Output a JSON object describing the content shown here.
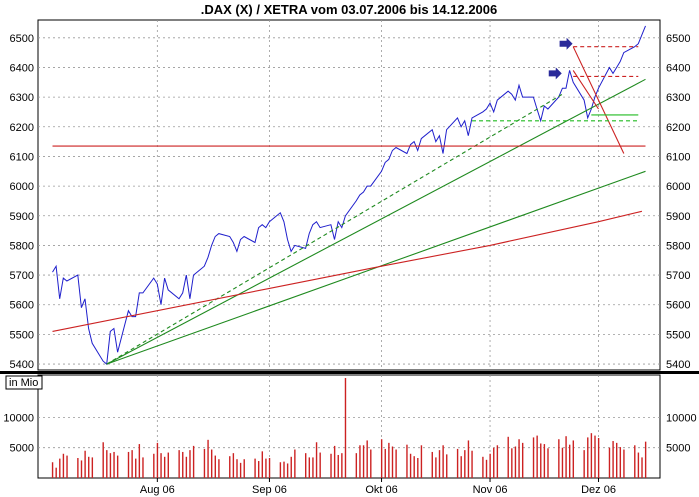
{
  "chart_data": [
    {
      "type": "line",
      "title": ".DAX (X) / XETRA vom 03.07.2006 bis 14.12.2006",
      "xlabel": "",
      "ylabel": "",
      "x_tick_labels": [
        "Aug 06",
        "Sep 06",
        "Okt 06",
        "Nov 06",
        "Dez 06"
      ],
      "x_tick_dates": [
        "2006-08-01",
        "2006-09-01",
        "2006-10-02",
        "2006-11-01",
        "2006-12-01"
      ],
      "xlim": [
        "2006-07-03",
        "2006-12-14"
      ],
      "ylim": [
        5380,
        6560
      ],
      "y_ticks": [
        5400,
        5500,
        5600,
        5700,
        5800,
        5900,
        6000,
        6100,
        6200,
        6300,
        6400,
        6500
      ],
      "y_tick_labels": [
        "5400",
        "5500",
        "5600",
        "5700",
        "5800",
        "5900",
        "6000",
        "6100",
        "6200",
        "6300",
        "6400",
        "6500"
      ],
      "grid": true,
      "colors": {
        "price": "#1f1fcc",
        "trend": "#1f8a1f",
        "average": "#cc2222",
        "level": "#cc2222",
        "support": "#22bb22",
        "marker": "#2a2a9a"
      },
      "series": [
        {
          "role": "price",
          "x": [
            "2006-07-03",
            "2006-07-04",
            "2006-07-05",
            "2006-07-06",
            "2006-07-07",
            "2006-07-10",
            "2006-07-11",
            "2006-07-12",
            "2006-07-13",
            "2006-07-14",
            "2006-07-17",
            "2006-07-18",
            "2006-07-19",
            "2006-07-20",
            "2006-07-21",
            "2006-07-24",
            "2006-07-25",
            "2006-07-26",
            "2006-07-27",
            "2006-07-28",
            "2006-07-31",
            "2006-08-01",
            "2006-08-02",
            "2006-08-03",
            "2006-08-04",
            "2006-08-07",
            "2006-08-08",
            "2006-08-09",
            "2006-08-10",
            "2006-08-11",
            "2006-08-14",
            "2006-08-15",
            "2006-08-16",
            "2006-08-17",
            "2006-08-18",
            "2006-08-21",
            "2006-08-22",
            "2006-08-23",
            "2006-08-24",
            "2006-08-25",
            "2006-08-28",
            "2006-08-29",
            "2006-08-30",
            "2006-08-31",
            "2006-09-01",
            "2006-09-04",
            "2006-09-05",
            "2006-09-06",
            "2006-09-07",
            "2006-09-08",
            "2006-09-11",
            "2006-09-12",
            "2006-09-13",
            "2006-09-14",
            "2006-09-15",
            "2006-09-18",
            "2006-09-19",
            "2006-09-20",
            "2006-09-21",
            "2006-09-22",
            "2006-09-25",
            "2006-09-26",
            "2006-09-27",
            "2006-09-28",
            "2006-09-29",
            "2006-10-02",
            "2006-10-03",
            "2006-10-04",
            "2006-10-05",
            "2006-10-06",
            "2006-10-09",
            "2006-10-10",
            "2006-10-11",
            "2006-10-12",
            "2006-10-13",
            "2006-10-16",
            "2006-10-17",
            "2006-10-18",
            "2006-10-19",
            "2006-10-20",
            "2006-10-23",
            "2006-10-24",
            "2006-10-25",
            "2006-10-26",
            "2006-10-27",
            "2006-10-30",
            "2006-10-31",
            "2006-11-01",
            "2006-11-02",
            "2006-11-03",
            "2006-11-06",
            "2006-11-07",
            "2006-11-08",
            "2006-11-09",
            "2006-11-10",
            "2006-11-13",
            "2006-11-14",
            "2006-11-15",
            "2006-11-16",
            "2006-11-17",
            "2006-11-20",
            "2006-11-21",
            "2006-11-22",
            "2006-11-23",
            "2006-11-24",
            "2006-11-27",
            "2006-11-28",
            "2006-11-29",
            "2006-11-30",
            "2006-12-01",
            "2006-12-04",
            "2006-12-05",
            "2006-12-06",
            "2006-12-07",
            "2006-12-08",
            "2006-12-11",
            "2006-12-12",
            "2006-12-13",
            "2006-12-14"
          ],
          "y": [
            5710,
            5730,
            5620,
            5690,
            5680,
            5700,
            5590,
            5620,
            5520,
            5470,
            5410,
            5400,
            5510,
            5520,
            5440,
            5580,
            5560,
            5560,
            5640,
            5640,
            5690,
            5670,
            5600,
            5690,
            5650,
            5620,
            5640,
            5700,
            5620,
            5700,
            5730,
            5760,
            5800,
            5830,
            5840,
            5830,
            5810,
            5780,
            5820,
            5830,
            5810,
            5860,
            5870,
            5860,
            5880,
            5910,
            5880,
            5820,
            5780,
            5800,
            5790,
            5840,
            5870,
            5880,
            5860,
            5870,
            5820,
            5880,
            5860,
            5900,
            5950,
            5970,
            5980,
            6000,
            6000,
            6050,
            6080,
            6090,
            6120,
            6130,
            6110,
            6140,
            6150,
            6120,
            6160,
            6190,
            6150,
            6170,
            6110,
            6190,
            6230,
            6200,
            6220,
            6170,
            6230,
            6250,
            6260,
            6280,
            6250,
            6290,
            6320,
            6310,
            6290,
            6340,
            6300,
            6300,
            6260,
            6220,
            6270,
            6260,
            6300,
            6330,
            6330,
            6390,
            6350,
            6290,
            6230,
            6260,
            6300,
            6330,
            6400,
            6380,
            6400,
            6420,
            6450,
            6470,
            6480,
            6510,
            6540
          ]
        },
        {
          "role": "trend",
          "style": "dashed",
          "x": [
            "2006-07-18",
            "2006-11-21"
          ],
          "y": [
            5400,
            6310
          ]
        },
        {
          "role": "trend",
          "x": [
            "2006-07-18",
            "2006-12-14"
          ],
          "y": [
            5400,
            6360
          ]
        },
        {
          "role": "trend",
          "x": [
            "2006-07-18",
            "2006-12-14"
          ],
          "y": [
            5400,
            6050
          ]
        },
        {
          "role": "average",
          "x": [
            "2006-07-03",
            "2006-09-01",
            "2006-10-02",
            "2006-11-01",
            "2006-12-01",
            "2006-12-13"
          ],
          "y": [
            5510,
            5655,
            5730,
            5800,
            5880,
            5915
          ]
        },
        {
          "role": "level",
          "x": [
            "2006-07-03",
            "2006-12-14"
          ],
          "y": [
            6135,
            6135
          ]
        },
        {
          "role": "level",
          "style": "dashed",
          "x": [
            "2006-11-24",
            "2006-12-12"
          ],
          "y": [
            6470,
            6470
          ]
        },
        {
          "role": "level",
          "style": "dashed",
          "x": [
            "2006-11-24",
            "2006-12-12"
          ],
          "y": [
            6370,
            6370
          ]
        },
        {
          "role": "level",
          "x": [
            "2006-11-24",
            "2006-12-08"
          ],
          "y": [
            6470,
            6110
          ]
        },
        {
          "role": "level",
          "x": [
            "2006-11-24",
            "2006-12-01"
          ],
          "y": [
            6390,
            6260
          ]
        },
        {
          "role": "support",
          "x": [
            "2006-11-29",
            "2006-12-12"
          ],
          "y": [
            6240,
            6240
          ]
        },
        {
          "role": "support",
          "style": "dashed",
          "x": [
            "2006-10-27",
            "2006-12-12"
          ],
          "y": [
            6220,
            6220
          ]
        }
      ],
      "marker_dates": [
        "2006-11-23",
        "2006-11-20"
      ],
      "marker_values": [
        6480,
        6380
      ]
    },
    {
      "type": "bar",
      "label": "in Mio",
      "ylim": [
        0,
        17000
      ],
      "y_ticks": [
        5000,
        10000
      ],
      "y_tick_labels": [
        "5000",
        "10000"
      ],
      "grid": true,
      "x": [
        "2006-07-03",
        "2006-07-04",
        "2006-07-05",
        "2006-07-06",
        "2006-07-07",
        "2006-07-10",
        "2006-07-11",
        "2006-07-12",
        "2006-07-13",
        "2006-07-14",
        "2006-07-17",
        "2006-07-18",
        "2006-07-19",
        "2006-07-20",
        "2006-07-21",
        "2006-07-24",
        "2006-07-25",
        "2006-07-26",
        "2006-07-27",
        "2006-07-28",
        "2006-07-31",
        "2006-08-01",
        "2006-08-02",
        "2006-08-03",
        "2006-08-04",
        "2006-08-07",
        "2006-08-08",
        "2006-08-09",
        "2006-08-10",
        "2006-08-11",
        "2006-08-14",
        "2006-08-15",
        "2006-08-16",
        "2006-08-17",
        "2006-08-18",
        "2006-08-21",
        "2006-08-22",
        "2006-08-23",
        "2006-08-24",
        "2006-08-25",
        "2006-08-28",
        "2006-08-29",
        "2006-08-30",
        "2006-08-31",
        "2006-09-01",
        "2006-09-04",
        "2006-09-05",
        "2006-09-06",
        "2006-09-07",
        "2006-09-08",
        "2006-09-11",
        "2006-09-12",
        "2006-09-13",
        "2006-09-14",
        "2006-09-15",
        "2006-09-18",
        "2006-09-19",
        "2006-09-20",
        "2006-09-21",
        "2006-09-22",
        "2006-09-25",
        "2006-09-26",
        "2006-09-27",
        "2006-09-28",
        "2006-09-29",
        "2006-10-02",
        "2006-10-03",
        "2006-10-04",
        "2006-10-05",
        "2006-10-06",
        "2006-10-09",
        "2006-10-10",
        "2006-10-11",
        "2006-10-12",
        "2006-10-13",
        "2006-10-16",
        "2006-10-17",
        "2006-10-18",
        "2006-10-19",
        "2006-10-20",
        "2006-10-23",
        "2006-10-24",
        "2006-10-25",
        "2006-10-26",
        "2006-10-27",
        "2006-10-30",
        "2006-10-31",
        "2006-11-01",
        "2006-11-02",
        "2006-11-03",
        "2006-11-06",
        "2006-11-07",
        "2006-11-08",
        "2006-11-09",
        "2006-11-10",
        "2006-11-13",
        "2006-11-14",
        "2006-11-15",
        "2006-11-16",
        "2006-11-17",
        "2006-11-20",
        "2006-11-21",
        "2006-11-22",
        "2006-11-23",
        "2006-11-24",
        "2006-11-27",
        "2006-11-28",
        "2006-11-29",
        "2006-11-30",
        "2006-12-01",
        "2006-12-04",
        "2006-12-05",
        "2006-12-06",
        "2006-12-07",
        "2006-12-08",
        "2006-12-11",
        "2006-12-12",
        "2006-12-13",
        "2006-12-14"
      ],
      "values": [
        2600,
        1700,
        3200,
        4000,
        3700,
        3300,
        2900,
        4500,
        3500,
        3400,
        5900,
        4600,
        4100,
        4300,
        3700,
        4300,
        4600,
        3200,
        5600,
        3400,
        4000,
        5800,
        4100,
        3500,
        4200,
        4600,
        4300,
        3500,
        4600,
        5300,
        4800,
        6300,
        4700,
        3700,
        3100,
        3600,
        4100,
        3100,
        2500,
        3100,
        3200,
        2800,
        4400,
        3200,
        3300,
        2600,
        2700,
        2400,
        3500,
        4700,
        4100,
        3400,
        3400,
        5900,
        4200,
        4000,
        5300,
        3800,
        4100,
        16500,
        4100,
        5400,
        5400,
        6200,
        4700,
        6400,
        4800,
        5800,
        5200,
        4700,
        5500,
        4000,
        3600,
        3300,
        5400,
        4300,
        3400,
        4600,
        5400,
        3900,
        4800,
        3600,
        4600,
        6200,
        4500,
        3500,
        3000,
        4000,
        5000,
        5400,
        6800,
        4900,
        5200,
        6400,
        5800,
        6700,
        7000,
        5700,
        5600,
        4900,
        6400,
        5000,
        6900,
        5500,
        6200,
        4600,
        6700,
        7400,
        7000,
        6600,
        5000,
        6100,
        5800,
        5100,
        4700,
        5400,
        4200,
        3400,
        6000
      ]
    }
  ]
}
